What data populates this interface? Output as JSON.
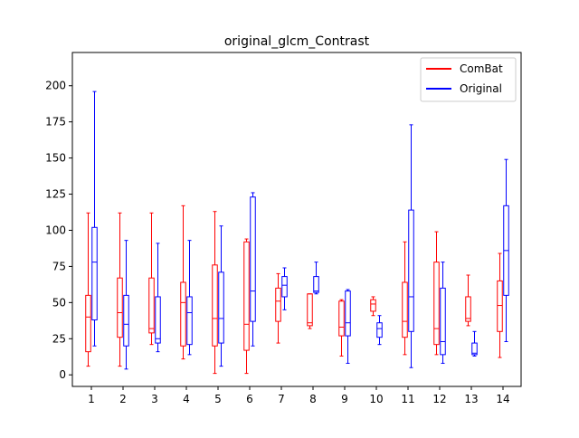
{
  "chart_data": {
    "type": "box",
    "title": "original_glcm_Contrast",
    "xlabel": "",
    "ylabel": "",
    "ylim": [
      -8,
      223
    ],
    "yticks": [
      0,
      25,
      50,
      75,
      100,
      125,
      150,
      175,
      200
    ],
    "categories": [
      "1",
      "2",
      "3",
      "4",
      "5",
      "6",
      "7",
      "8",
      "9",
      "10",
      "11",
      "12",
      "13",
      "14"
    ],
    "legend": {
      "placement": "top-right"
    },
    "grid": false,
    "series": [
      {
        "name": "ComBat",
        "color": "#ff0000",
        "boxes": [
          {
            "whislo": 6,
            "q1": 16,
            "med": 40,
            "q3": 55,
            "whishi": 112
          },
          {
            "whislo": 6,
            "q1": 26,
            "med": 43,
            "q3": 67,
            "whishi": 112
          },
          {
            "whislo": 21,
            "q1": 29,
            "med": 32,
            "q3": 67,
            "whishi": 112
          },
          {
            "whislo": 11,
            "q1": 20,
            "med": 50,
            "q3": 64,
            "whishi": 117
          },
          {
            "whislo": 1,
            "q1": 20,
            "med": 39,
            "q3": 76,
            "whishi": 113
          },
          {
            "whislo": 1,
            "q1": 17,
            "med": 35,
            "q3": 92,
            "whishi": 94
          },
          {
            "whislo": 22,
            "q1": 37,
            "med": 51,
            "q3": 60,
            "whishi": 70
          },
          {
            "whislo": 32,
            "q1": 34,
            "med": 36,
            "q3": 56,
            "whishi": 56
          },
          {
            "whislo": 13,
            "q1": 27,
            "med": 33,
            "q3": 51,
            "whishi": 52
          },
          {
            "whislo": 41,
            "q1": 44,
            "med": 49,
            "q3": 52,
            "whishi": 54
          },
          {
            "whislo": 14,
            "q1": 26,
            "med": 37,
            "q3": 64,
            "whishi": 92
          },
          {
            "whislo": 14,
            "q1": 21,
            "med": 32,
            "q3": 78,
            "whishi": 99
          },
          {
            "whislo": 34,
            "q1": 37,
            "med": 39,
            "q3": 54,
            "whishi": 69
          },
          {
            "whislo": 12,
            "q1": 30,
            "med": 48,
            "q3": 65,
            "whishi": 84
          }
        ]
      },
      {
        "name": "Original",
        "color": "#0000ff",
        "boxes": [
          {
            "whislo": 20,
            "q1": 38,
            "med": 78,
            "q3": 102,
            "whishi": 196
          },
          {
            "whislo": 4,
            "q1": 20,
            "med": 35,
            "q3": 55,
            "whishi": 93
          },
          {
            "whislo": 16,
            "q1": 22,
            "med": 25,
            "q3": 54,
            "whishi": 91
          },
          {
            "whislo": 14,
            "q1": 21,
            "med": 43,
            "q3": 54,
            "whishi": 93
          },
          {
            "whislo": 6,
            "q1": 22,
            "med": 39,
            "q3": 71,
            "whishi": 103
          },
          {
            "whislo": 20,
            "q1": 37,
            "med": 58,
            "q3": 123,
            "whishi": 126
          },
          {
            "whislo": 45,
            "q1": 54,
            "med": 62,
            "q3": 68,
            "whishi": 74
          },
          {
            "whislo": 56,
            "q1": 57,
            "med": 58,
            "q3": 68,
            "whishi": 78
          },
          {
            "whislo": 8,
            "q1": 27,
            "med": 36,
            "q3": 58,
            "whishi": 59
          },
          {
            "whislo": 21,
            "q1": 26,
            "med": 32,
            "q3": 36,
            "whishi": 41
          },
          {
            "whislo": 5,
            "q1": 30,
            "med": 54,
            "q3": 114,
            "whishi": 173
          },
          {
            "whislo": 8,
            "q1": 14,
            "med": 23,
            "q3": 60,
            "whishi": 78
          },
          {
            "whislo": 13,
            "q1": 14,
            "med": 15,
            "q3": 22,
            "whishi": 30
          },
          {
            "whislo": 23,
            "q1": 55,
            "med": 86,
            "q3": 117,
            "whishi": 149
          }
        ]
      }
    ]
  }
}
